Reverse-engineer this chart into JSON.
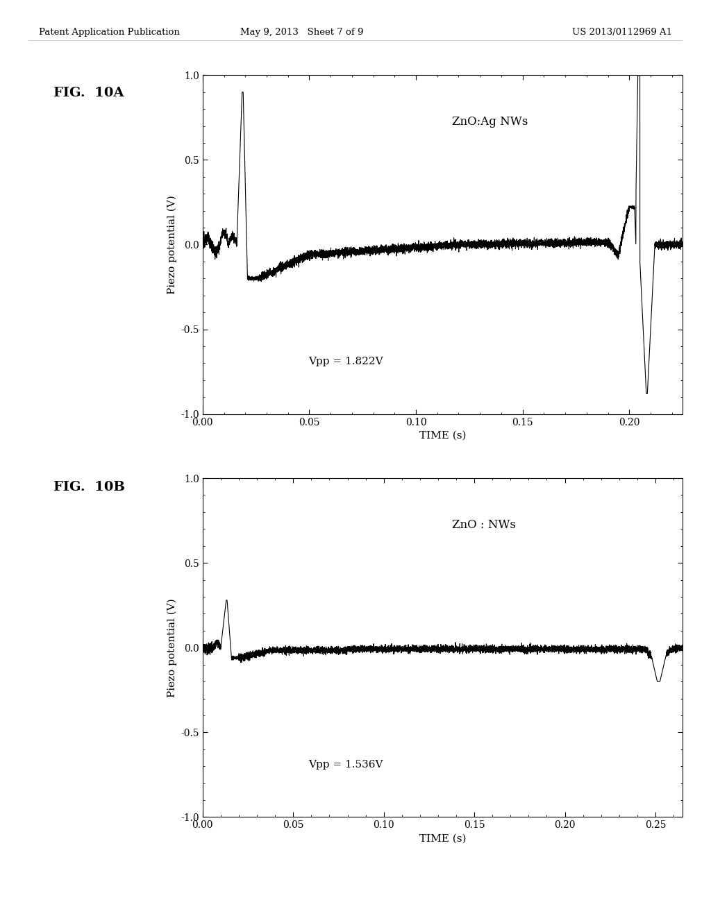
{
  "header_left": "Patent Application Publication",
  "header_mid": "May 9, 2013   Sheet 7 of 9",
  "header_right": "US 2013/0112969 A1",
  "fig_label_A": "FIG.  10A",
  "fig_label_B": "FIG.  10B",
  "plot_A": {
    "label": "ZnO:Ag NWs",
    "vpp_text": "Vpp = 1.822V",
    "ylabel": "Piezo potential (V)",
    "xlabel": "TIME (s)",
    "xlim": [
      0.0,
      0.225
    ],
    "ylim": [
      -1.0,
      1.0
    ],
    "xticks": [
      0.0,
      0.05,
      0.1,
      0.15,
      0.2
    ],
    "yticks": [
      -1.0,
      -0.5,
      0.0,
      0.5,
      1.0
    ],
    "ytick_labels": [
      "-1.0",
      "-0.5",
      "0.0",
      "0.5",
      "1.0"
    ]
  },
  "plot_B": {
    "label": "ZnO : NWs",
    "vpp_text": "Vpp = 1.536V",
    "ylabel": "Piezo potential (V)",
    "xlabel": "TIME (s)",
    "xlim": [
      0.0,
      0.265
    ],
    "ylim": [
      -1.0,
      1.0
    ],
    "xticks": [
      0.0,
      0.05,
      0.1,
      0.15,
      0.2,
      0.25
    ],
    "yticks": [
      -1.0,
      -0.5,
      0.0,
      0.5,
      1.0
    ],
    "ytick_labels": [
      "-1.0",
      "-0.5",
      "0.0",
      "0.5",
      "1.0"
    ]
  },
  "bg_color": "#ffffff",
  "line_color": "#000000",
  "text_color": "#000000"
}
